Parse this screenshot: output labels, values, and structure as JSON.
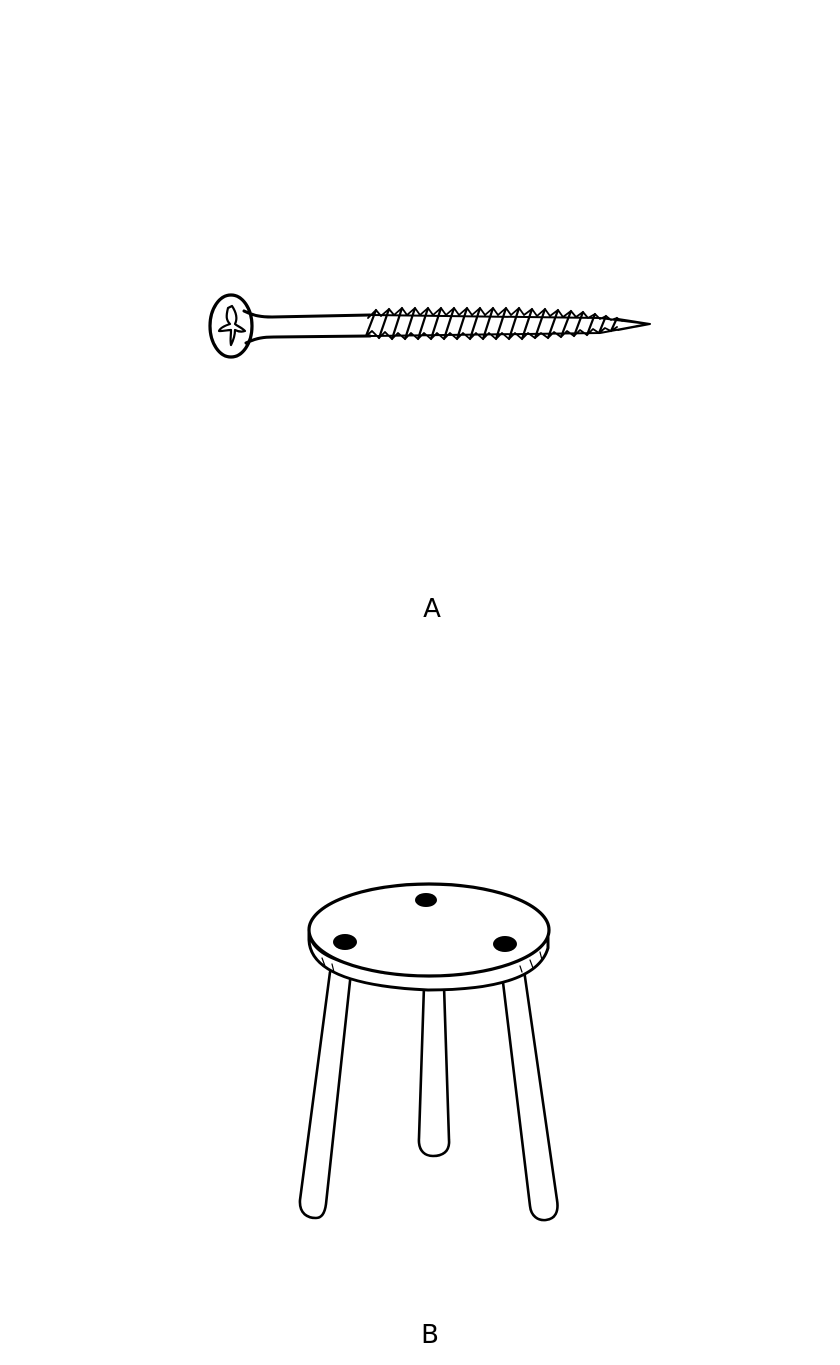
{
  "figures": [
    {
      "label": "A",
      "icon": "screw-icon"
    },
    {
      "label": "B",
      "icon": "stool-icon"
    }
  ],
  "colors": {
    "ink": "#000000",
    "background": "#ffffff"
  }
}
